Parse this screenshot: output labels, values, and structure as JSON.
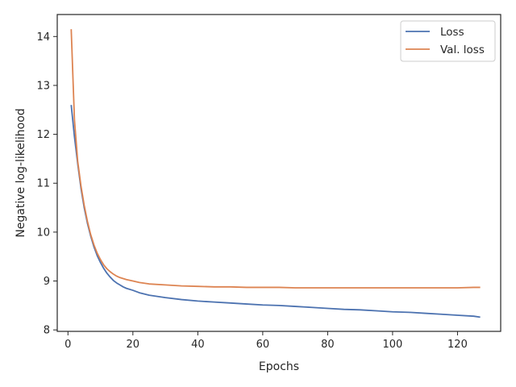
{
  "chart_data": {
    "type": "line",
    "title": "",
    "xlabel": "Epochs",
    "ylabel": "Negative log-likelihood",
    "xlim": [
      -3.3,
      133.3
    ],
    "ylim": [
      7.97,
      14.45
    ],
    "xticks": [
      0,
      20,
      40,
      60,
      80,
      100,
      120
    ],
    "yticks": [
      8,
      9,
      10,
      11,
      12,
      13,
      14
    ],
    "grid": false,
    "legend": "top-right",
    "series": [
      {
        "name": "Loss",
        "color": "#4c72b0",
        "x": [
          1,
          2,
          3,
          4,
          5,
          6,
          7,
          8,
          9,
          10,
          11,
          12,
          13,
          14,
          15,
          16,
          17,
          18,
          20,
          22,
          25,
          30,
          35,
          40,
          45,
          50,
          55,
          60,
          65,
          70,
          75,
          80,
          85,
          90,
          95,
          100,
          105,
          110,
          115,
          120,
          125,
          127
        ],
        "y": [
          12.6,
          11.95,
          11.4,
          10.9,
          10.5,
          10.18,
          9.92,
          9.7,
          9.52,
          9.38,
          9.26,
          9.16,
          9.08,
          9.01,
          8.96,
          8.92,
          8.88,
          8.85,
          8.81,
          8.76,
          8.71,
          8.66,
          8.62,
          8.59,
          8.57,
          8.55,
          8.53,
          8.51,
          8.5,
          8.48,
          8.46,
          8.44,
          8.42,
          8.41,
          8.39,
          8.37,
          8.36,
          8.34,
          8.32,
          8.3,
          8.28,
          8.26
        ]
      },
      {
        "name": "Val. loss",
        "color": "#dd8452",
        "x": [
          1,
          2,
          3,
          4,
          5,
          6,
          7,
          8,
          9,
          10,
          11,
          12,
          13,
          14,
          15,
          16,
          17,
          18,
          20,
          22,
          25,
          30,
          35,
          40,
          45,
          50,
          55,
          60,
          65,
          70,
          75,
          80,
          85,
          90,
          95,
          100,
          105,
          110,
          115,
          120,
          125,
          127
        ],
        "y": [
          14.15,
          12.3,
          11.45,
          10.95,
          10.55,
          10.22,
          9.95,
          9.74,
          9.57,
          9.44,
          9.33,
          9.25,
          9.19,
          9.14,
          9.1,
          9.07,
          9.05,
          9.03,
          9.0,
          8.97,
          8.94,
          8.92,
          8.9,
          8.89,
          8.88,
          8.88,
          8.87,
          8.87,
          8.87,
          8.86,
          8.86,
          8.86,
          8.86,
          8.86,
          8.86,
          8.86,
          8.86,
          8.86,
          8.86,
          8.86,
          8.87,
          8.87
        ]
      }
    ]
  }
}
